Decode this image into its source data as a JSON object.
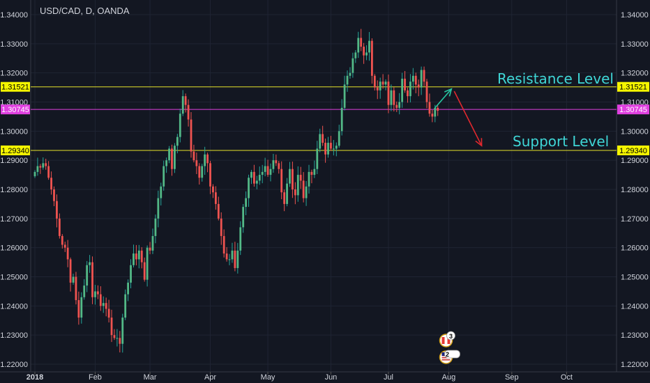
{
  "chart_data": {
    "type": "candlestick",
    "symbol_label": "USD/CAD, D, OANDA",
    "ylim": [
      1.2185,
      1.343
    ],
    "y_ticks": [
      1.22,
      1.23,
      1.24,
      1.25,
      1.26,
      1.27,
      1.28,
      1.29,
      1.3,
      1.31,
      1.32,
      1.33,
      1.34
    ],
    "y_tick_labels": [
      "1.22000",
      "1.23000",
      "1.24000",
      "1.25000",
      "1.26000",
      "1.27000",
      "1.28000",
      "1.29000",
      "1.30000",
      "1.31000",
      "1.32000",
      "1.33000",
      "1.34000"
    ],
    "x_labels": [
      {
        "label": "2018",
        "i": 0,
        "bold": true
      },
      {
        "label": "Feb",
        "i": 22
      },
      {
        "label": "Mar",
        "i": 42
      },
      {
        "label": "Apr",
        "i": 64
      },
      {
        "label": "May",
        "i": 85
      },
      {
        "label": "Jun",
        "i": 108
      },
      {
        "label": "Jul",
        "i": 129
      },
      {
        "label": "Aug",
        "i": 151
      },
      {
        "label": "Sep",
        "i": 174
      },
      {
        "label": "Oct",
        "i": 194
      }
    ],
    "closes": [
      1.286,
      1.288,
      1.2875,
      1.289,
      1.288,
      1.284,
      1.28,
      1.276,
      1.27,
      1.264,
      1.261,
      1.26,
      1.256,
      1.248,
      1.25,
      1.242,
      1.236,
      1.243,
      1.247,
      1.254,
      1.255,
      1.243,
      1.245,
      1.244,
      1.24,
      1.241,
      1.239,
      1.236,
      1.23,
      1.229,
      1.229,
      1.227,
      1.236,
      1.244,
      1.248,
      1.254,
      1.258,
      1.256,
      1.259,
      1.255,
      1.249,
      1.26,
      1.259,
      1.264,
      1.27,
      1.277,
      1.281,
      1.288,
      1.29,
      1.294,
      1.287,
      1.295,
      1.298,
      1.306,
      1.312,
      1.309,
      1.304,
      1.293,
      1.29,
      1.288,
      1.284,
      1.288,
      1.292,
      1.289,
      1.281,
      1.279,
      1.275,
      1.27,
      1.264,
      1.258,
      1.256,
      1.256,
      1.259,
      1.253,
      1.259,
      1.267,
      1.274,
      1.277,
      1.284,
      1.286,
      1.282,
      1.283,
      1.285,
      1.286,
      1.288,
      1.285,
      1.287,
      1.29,
      1.289,
      1.287,
      1.279,
      1.275,
      1.282,
      1.287,
      1.28,
      1.278,
      1.285,
      1.283,
      1.277,
      1.281,
      1.286,
      1.285,
      1.287,
      1.294,
      1.299,
      1.296,
      1.292,
      1.296,
      1.294,
      1.294,
      1.295,
      1.3,
      1.308,
      1.316,
      1.319,
      1.32,
      1.325,
      1.327,
      1.332,
      1.329,
      1.326,
      1.327,
      1.331,
      1.319,
      1.315,
      1.314,
      1.317,
      1.316,
      1.317,
      1.309,
      1.314,
      1.309,
      1.308,
      1.31,
      1.318,
      1.314,
      1.312,
      1.317,
      1.319,
      1.316,
      1.315,
      1.321,
      1.317,
      1.31,
      1.306,
      1.305,
      1.308,
      1.307
    ],
    "hlines": [
      {
        "name": "resistance-line",
        "value": 1.31521,
        "label": "1.31521",
        "color": "#e6e32a",
        "badge_bg": "#f5f500",
        "badge_fg": "#000000"
      },
      {
        "name": "current-price-line",
        "value": 1.30745,
        "label": "1.30745",
        "color": "#e040e0",
        "badge_bg": "#e040e0",
        "badge_fg": "#ffffff"
      },
      {
        "name": "support-line",
        "value": 1.2934,
        "label": "1.29340",
        "color": "#e6e32a",
        "badge_bg": "#f5f500",
        "badge_fg": "#000000"
      }
    ],
    "annotations": [
      {
        "name": "resistance-level-label",
        "text": "Resistance Level",
        "price": 1.3175,
        "color": "#3fd6d6"
      },
      {
        "name": "support-level-label",
        "text": "Support Level",
        "price": 1.296,
        "color": "#3fd6d6"
      }
    ],
    "arrows": [
      {
        "name": "up-arrow",
        "from": {
          "i": 146,
          "price": 1.308
        },
        "to": {
          "i": 152,
          "price": 1.3145
        },
        "color": "#26c6a0"
      },
      {
        "name": "down-arrow",
        "from": {
          "i": 153,
          "price": 1.3137
        },
        "to": {
          "i": 163,
          "price": 1.295
        },
        "color": "#e0282e"
      }
    ],
    "event_badges": [
      {
        "name": "event-badge-canada",
        "count": "3"
      },
      {
        "name": "event-badge-us",
        "count": "2"
      }
    ],
    "colors": {
      "bull": "#26a69a",
      "bull_fill": "#53b987",
      "bear": "#ef5350",
      "bg": "#131722",
      "grid": "#1f2433",
      "text": "#d1d4dc"
    }
  }
}
